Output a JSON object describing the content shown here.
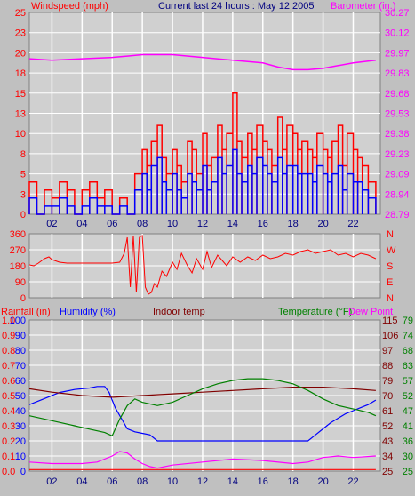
{
  "header": {
    "left_label": "Windspeed (mph)",
    "center_label": "Current last 24 hours : May 12 2005",
    "right_label": "Barometer (in.)"
  },
  "bottom_header": {
    "rainfall": "Rainfall (in)",
    "humidity": "Humidity (%)",
    "indoor": "Indoor temp",
    "temperature": "Temperature (°F)",
    "dewpoint": "Dew Point"
  },
  "direction_labels": [
    "N",
    "W",
    "S",
    "E",
    "N"
  ],
  "colors": {
    "background": "#c0c0c0",
    "plot": "#d0d0d0",
    "grid": "#ffffff",
    "wind_gust": "#ff0000",
    "wind_avg": "#0000ff",
    "barometer": "#ff00ff",
    "direction": "#ff0000",
    "humidity": "#0000ff",
    "indoor": "#800000",
    "temperature": "#008000",
    "rainfall": "#ff0000",
    "dewpoint": "#ff00ff"
  },
  "chart_data": [
    {
      "type": "line",
      "panel": "wind_barometer",
      "x_ticks": [
        "02",
        "04",
        "06",
        "08",
        "10",
        "12",
        "14",
        "16",
        "18",
        "20",
        "22"
      ],
      "xlim": [
        0.5,
        23.8
      ],
      "y_left_ticks": [
        "0",
        "3",
        "5",
        "8",
        "10",
        "13",
        "15",
        "18",
        "20",
        "23",
        "25"
      ],
      "ylim_left": [
        0,
        25
      ],
      "y_right_ticks": [
        "28.79",
        "28.94",
        "29.09",
        "29.23",
        "29.38",
        "29.53",
        "29.68",
        "29.83",
        "29.97",
        "30.12",
        "30.27"
      ],
      "ylim_right": [
        28.79,
        30.27
      ],
      "series": [
        {
          "name": "Windspeed (mph)",
          "color": "#ff0000",
          "x": [
            0.5,
            1.0,
            1.5,
            2.0,
            2.5,
            3.0,
            3.5,
            4.0,
            4.5,
            5.0,
            5.5,
            6.0,
            6.5,
            7.0,
            7.5,
            8.0,
            8.3,
            8.6,
            9.0,
            9.3,
            9.6,
            10.0,
            10.3,
            10.6,
            11.0,
            11.3,
            11.6,
            12.0,
            12.3,
            12.6,
            13.0,
            13.3,
            13.6,
            14.0,
            14.3,
            14.6,
            15.0,
            15.3,
            15.6,
            16.0,
            16.3,
            16.6,
            17.0,
            17.3,
            17.6,
            18.0,
            18.3,
            18.6,
            19.0,
            19.3,
            19.6,
            20.0,
            20.3,
            20.6,
            21.0,
            21.3,
            21.6,
            22.0,
            22.3,
            22.6,
            23.0,
            23.5
          ],
          "values": [
            4,
            0,
            3,
            2,
            4,
            3,
            0,
            3,
            4,
            2,
            3,
            0,
            2,
            0,
            5,
            8,
            6,
            9,
            11,
            7,
            5,
            8,
            6,
            4,
            9,
            8,
            5,
            10,
            6,
            7,
            11,
            8,
            10,
            15,
            9,
            7,
            10,
            8,
            11,
            9,
            8,
            6,
            12,
            8,
            11,
            10,
            8,
            9,
            8,
            7,
            10,
            8,
            7,
            9,
            11,
            6,
            10,
            8,
            7,
            6,
            4,
            3
          ]
        },
        {
          "name": "Average wind",
          "color": "#0000ff",
          "x": [
            0.5,
            1.0,
            1.5,
            2.0,
            2.5,
            3.0,
            3.5,
            4.0,
            4.5,
            5.0,
            5.5,
            6.0,
            6.5,
            7.0,
            7.5,
            8.0,
            8.3,
            8.6,
            9.0,
            9.3,
            9.6,
            10.0,
            10.3,
            10.6,
            11.0,
            11.3,
            11.6,
            12.0,
            12.3,
            12.6,
            13.0,
            13.3,
            13.6,
            14.0,
            14.3,
            14.6,
            15.0,
            15.3,
            15.6,
            16.0,
            16.3,
            16.6,
            17.0,
            17.3,
            17.6,
            18.0,
            18.3,
            18.6,
            19.0,
            19.3,
            19.6,
            20.0,
            20.3,
            20.6,
            21.0,
            21.3,
            21.6,
            22.0,
            22.3,
            22.6,
            23.0,
            23.5
          ],
          "values": [
            2,
            0,
            1,
            1,
            2,
            1,
            0,
            1,
            2,
            1,
            1,
            0,
            1,
            0,
            3,
            5,
            3,
            6,
            7,
            4,
            3,
            5,
            3,
            2,
            5,
            4,
            3,
            6,
            3,
            4,
            7,
            5,
            6,
            8,
            5,
            4,
            6,
            5,
            7,
            6,
            5,
            4,
            7,
            5,
            6,
            6,
            5,
            5,
            5,
            4,
            6,
            5,
            4,
            5,
            6,
            3,
            5,
            4,
            4,
            3,
            2,
            1
          ]
        },
        {
          "name": "Barometer (in.)",
          "color": "#ff00ff",
          "axis": "right",
          "x": [
            0.5,
            2,
            4,
            6,
            7,
            8,
            10,
            12,
            14,
            16,
            17,
            18,
            19,
            20,
            21,
            22,
            23.5
          ],
          "values": [
            29.93,
            29.92,
            29.93,
            29.94,
            29.95,
            29.96,
            29.96,
            29.94,
            29.92,
            29.9,
            29.87,
            29.85,
            29.85,
            29.86,
            29.88,
            29.9,
            29.92
          ]
        }
      ]
    },
    {
      "type": "line",
      "panel": "wind_direction",
      "x_ticks": [
        "02",
        "04",
        "06",
        "08",
        "10",
        "12",
        "14",
        "16",
        "18",
        "20",
        "22"
      ],
      "xlim": [
        0.5,
        23.8
      ],
      "y_ticks": [
        "0",
        "90",
        "180",
        "270",
        "360"
      ],
      "ylim": [
        0,
        360
      ],
      "series": [
        {
          "name": "Wind direction",
          "color": "#ff0000",
          "x": [
            0.5,
            0.8,
            1.1,
            1.5,
            1.8,
            2.0,
            2.5,
            3.0,
            4.0,
            5.0,
            6.0,
            6.5,
            6.8,
            7.0,
            7.2,
            7.4,
            7.6,
            7.8,
            8.0,
            8.2,
            8.4,
            8.6,
            8.8,
            9.0,
            9.3,
            9.6,
            10.0,
            10.3,
            10.6,
            11.0,
            11.3,
            11.6,
            12.0,
            12.3,
            12.6,
            13.0,
            13.3,
            13.6,
            14.0,
            14.5,
            15.0,
            15.5,
            16.0,
            16.5,
            17.0,
            17.5,
            18.0,
            18.5,
            19.0,
            19.5,
            20.0,
            20.5,
            21.0,
            21.5,
            22.0,
            22.5,
            23.0,
            23.5
          ],
          "values": [
            185,
            180,
            195,
            220,
            230,
            215,
            200,
            195,
            195,
            195,
            195,
            200,
            250,
            340,
            60,
            350,
            30,
            340,
            350,
            60,
            20,
            30,
            80,
            60,
            150,
            120,
            200,
            160,
            250,
            180,
            140,
            220,
            160,
            260,
            170,
            240,
            210,
            180,
            230,
            200,
            230,
            210,
            240,
            220,
            230,
            250,
            240,
            260,
            270,
            250,
            260,
            270,
            240,
            250,
            230,
            250,
            240,
            220
          ]
        }
      ]
    },
    {
      "type": "line",
      "panel": "temperature_humidity",
      "x_ticks": [
        "02",
        "04",
        "06",
        "08",
        "10",
        "12",
        "14",
        "16",
        "18",
        "20",
        "22"
      ],
      "xlim": [
        0.5,
        23.8
      ],
      "y_rain_ticks": [
        "0.0",
        "0.1",
        "0.2",
        "0.3",
        "0.4",
        "0.5",
        "0.6",
        "0.7",
        "0.8",
        "0.9",
        "1.0"
      ],
      "y_humidity_ticks": [
        "0",
        "10",
        "20",
        "30",
        "40",
        "50",
        "60",
        "70",
        "80",
        "90",
        "100"
      ],
      "ylim_humidity": [
        0,
        100
      ],
      "y_temp_left_ticks": [
        "25",
        "34",
        "43",
        "52",
        "61",
        "70",
        "79",
        "88",
        "97",
        "106",
        "115"
      ],
      "y_temp_right_ticks": [
        "25",
        "30",
        "36",
        "41",
        "47",
        "52",
        "57",
        "63",
        "68",
        "74",
        "79"
      ],
      "ylim_temp": [
        25,
        115
      ],
      "series": [
        {
          "name": "Humidity (%)",
          "color": "#0000ff",
          "axis": "humidity",
          "x": [
            0.5,
            1.5,
            2.5,
            3.5,
            4.5,
            5.0,
            5.5,
            5.8,
            6.2,
            6.6,
            7.0,
            7.5,
            8.0,
            8.5,
            9.0,
            10,
            12,
            14,
            16,
            18,
            19,
            19.5,
            20,
            20.5,
            21,
            21.5,
            22,
            22.5,
            23,
            23.5
          ],
          "values": [
            44,
            48,
            52,
            54,
            55,
            56,
            56,
            52,
            42,
            35,
            28,
            26,
            25,
            24,
            20,
            20,
            20,
            20,
            20,
            20,
            20,
            24,
            28,
            32,
            35,
            38,
            40,
            42,
            44,
            47
          ]
        },
        {
          "name": "Indoor temp",
          "color": "#800000",
          "axis": "temp",
          "x": [
            0.5,
            2,
            4,
            6,
            8,
            10,
            12,
            14,
            16,
            18,
            20,
            22,
            23.5
          ],
          "values": [
            74,
            72,
            70,
            69,
            70,
            71,
            72,
            73,
            74,
            75,
            75,
            74,
            73
          ]
        },
        {
          "name": "Temperature (°F)",
          "color": "#008000",
          "axis": "temp",
          "x": [
            0.5,
            1.5,
            2.5,
            3.5,
            4.5,
            5.5,
            6.0,
            6.5,
            7.0,
            7.5,
            8.0,
            9,
            10,
            11,
            12,
            13,
            14,
            15,
            16,
            17,
            18,
            19,
            20,
            21,
            22,
            23,
            23.5
          ],
          "values": [
            58,
            56,
            54,
            52,
            50,
            48,
            46,
            56,
            64,
            68,
            66,
            64,
            66,
            70,
            74,
            77,
            79,
            80,
            80,
            79,
            77,
            73,
            68,
            64,
            62,
            60,
            58
          ]
        },
        {
          "name": "Dew Point",
          "color": "#ff00ff",
          "axis": "rain",
          "x": [
            0.5,
            2,
            4,
            5,
            6,
            6.5,
            7,
            7.5,
            8,
            8.5,
            9,
            10,
            12,
            14,
            16,
            18,
            19,
            20,
            21,
            22,
            23.5
          ],
          "values": [
            0.06,
            0.05,
            0.05,
            0.06,
            0.1,
            0.13,
            0.12,
            0.08,
            0.05,
            0.03,
            0.02,
            0.04,
            0.06,
            0.08,
            0.07,
            0.05,
            0.06,
            0.09,
            0.1,
            0.09,
            0.1
          ]
        },
        {
          "name": "Rainfall (in)",
          "color": "#ff0000",
          "axis": "rain",
          "x": [
            0.5,
            23.5
          ],
          "values": [
            0.01,
            0.01
          ]
        }
      ]
    }
  ]
}
